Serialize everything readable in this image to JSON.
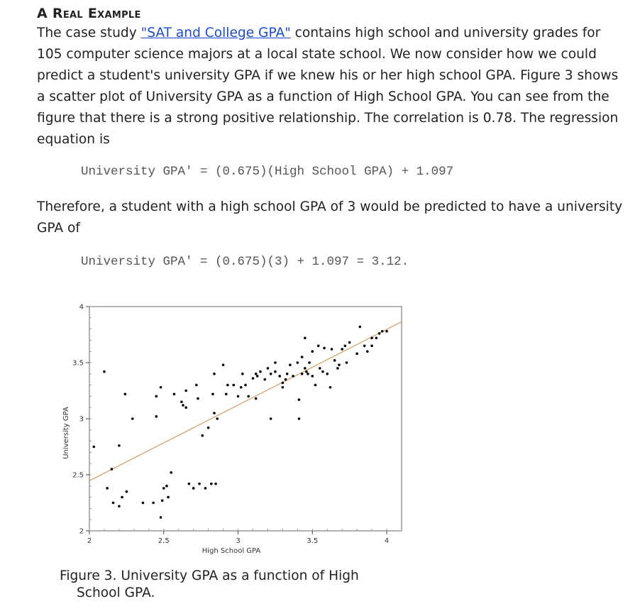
{
  "heading": "A Real Example",
  "intro": {
    "before_link": "The case study ",
    "link_text": "\"SAT and College GPA\"",
    "after_link": " contains high school and university grades for 105 computer science majors at a local state school. We now consider how we could predict a student's university GPA if we knew his or her high school GPA. Figure 3 shows a scatter plot of University GPA as a function of High School GPA. You can see from the figure that there is a strong positive relationship. The correlation is 0.78. The regression equation is"
  },
  "equation1": "University GPA' = (0.675)(High School GPA) + 1.097",
  "para2": "Therefore, a student with a high school GPA of 3 would be predicted to have a university GPA of",
  "equation2": "University GPA' = (0.675)(3) + 1.097 = 3.12.",
  "caption_line1": "Figure 3. University GPA as a function of High",
  "caption_line2": "School GPA.",
  "colors": {
    "text": "#222222",
    "link": "#1a4ccf",
    "code": "#555555",
    "regression_line": "#d9a066",
    "points": "#000000"
  },
  "chart_data": {
    "type": "scatter",
    "title": "",
    "xlabel": "High School GPA",
    "ylabel": "University GPA",
    "xlim": [
      2,
      4.1
    ],
    "ylim": [
      2,
      4
    ],
    "x_ticks": [
      2,
      2.5,
      3,
      3.5,
      4
    ],
    "x_tick_labels": [
      "2",
      "2.5",
      "3",
      "3.5",
      "4"
    ],
    "y_ticks": [
      2,
      2.5,
      3,
      3.5,
      4
    ],
    "y_tick_labels": [
      "2",
      "2.5",
      "3",
      "3.5",
      "4"
    ],
    "regression": {
      "slope": 0.675,
      "intercept": 1.097
    },
    "grid": false,
    "points": [
      [
        2.03,
        2.75
      ],
      [
        2.1,
        3.42
      ],
      [
        2.12,
        2.38
      ],
      [
        2.15,
        2.55
      ],
      [
        2.16,
        2.25
      ],
      [
        2.2,
        2.22
      ],
      [
        2.2,
        2.76
      ],
      [
        2.22,
        2.3
      ],
      [
        2.24,
        3.22
      ],
      [
        2.25,
        2.35
      ],
      [
        2.29,
        3.0
      ],
      [
        2.36,
        2.25
      ],
      [
        2.43,
        2.25
      ],
      [
        2.45,
        3.02
      ],
      [
        2.45,
        3.2
      ],
      [
        2.48,
        3.28
      ],
      [
        2.48,
        2.12
      ],
      [
        2.49,
        2.27
      ],
      [
        2.5,
        2.38
      ],
      [
        2.52,
        2.4
      ],
      [
        2.53,
        2.3
      ],
      [
        2.55,
        2.52
      ],
      [
        2.57,
        3.22
      ],
      [
        2.62,
        3.15
      ],
      [
        2.63,
        3.12
      ],
      [
        2.65,
        3.1
      ],
      [
        2.65,
        3.25
      ],
      [
        2.67,
        2.42
      ],
      [
        2.7,
        2.38
      ],
      [
        2.72,
        3.3
      ],
      [
        2.73,
        3.18
      ],
      [
        2.74,
        2.42
      ],
      [
        2.76,
        2.85
      ],
      [
        2.78,
        2.38
      ],
      [
        2.8,
        2.92
      ],
      [
        2.82,
        2.42
      ],
      [
        2.83,
        3.22
      ],
      [
        2.84,
        3.05
      ],
      [
        2.84,
        3.4
      ],
      [
        2.85,
        2.42
      ],
      [
        2.86,
        3.0
      ],
      [
        2.9,
        3.48
      ],
      [
        2.92,
        3.22
      ],
      [
        2.93,
        3.3
      ],
      [
        2.97,
        3.3
      ],
      [
        3.0,
        3.2
      ],
      [
        3.02,
        3.28
      ],
      [
        3.03,
        3.4
      ],
      [
        3.05,
        3.3
      ],
      [
        3.07,
        3.2
      ],
      [
        3.1,
        3.36
      ],
      [
        3.12,
        3.4
      ],
      [
        3.12,
        3.18
      ],
      [
        3.13,
        3.38
      ],
      [
        3.15,
        3.42
      ],
      [
        3.18,
        3.35
      ],
      [
        3.2,
        3.45
      ],
      [
        3.22,
        3.4
      ],
      [
        3.22,
        3.0
      ],
      [
        3.25,
        3.42
      ],
      [
        3.25,
        3.5
      ],
      [
        3.28,
        3.38
      ],
      [
        3.3,
        3.28
      ],
      [
        3.3,
        3.32
      ],
      [
        3.32,
        3.35
      ],
      [
        3.33,
        3.4
      ],
      [
        3.35,
        3.48
      ],
      [
        3.37,
        3.38
      ],
      [
        3.4,
        3.5
      ],
      [
        3.41,
        3.17
      ],
      [
        3.41,
        3.0
      ],
      [
        3.43,
        3.4
      ],
      [
        3.43,
        3.55
      ],
      [
        3.45,
        3.45
      ],
      [
        3.45,
        3.72
      ],
      [
        3.46,
        3.42
      ],
      [
        3.47,
        3.4
      ],
      [
        3.48,
        3.5
      ],
      [
        3.5,
        3.38
      ],
      [
        3.5,
        3.6
      ],
      [
        3.52,
        3.3
      ],
      [
        3.54,
        3.65
      ],
      [
        3.55,
        3.45
      ],
      [
        3.57,
        3.42
      ],
      [
        3.58,
        3.63
      ],
      [
        3.6,
        3.4
      ],
      [
        3.62,
        3.28
      ],
      [
        3.63,
        3.62
      ],
      [
        3.65,
        3.52
      ],
      [
        3.67,
        3.45
      ],
      [
        3.68,
        3.48
      ],
      [
        3.7,
        3.62
      ],
      [
        3.72,
        3.65
      ],
      [
        3.73,
        3.5
      ],
      [
        3.75,
        3.68
      ],
      [
        3.8,
        3.58
      ],
      [
        3.82,
        3.82
      ],
      [
        3.85,
        3.65
      ],
      [
        3.87,
        3.6
      ],
      [
        3.9,
        3.72
      ],
      [
        3.9,
        3.65
      ],
      [
        3.93,
        3.72
      ],
      [
        3.95,
        3.76
      ],
      [
        3.97,
        3.78
      ],
      [
        4.0,
        3.78
      ]
    ]
  }
}
